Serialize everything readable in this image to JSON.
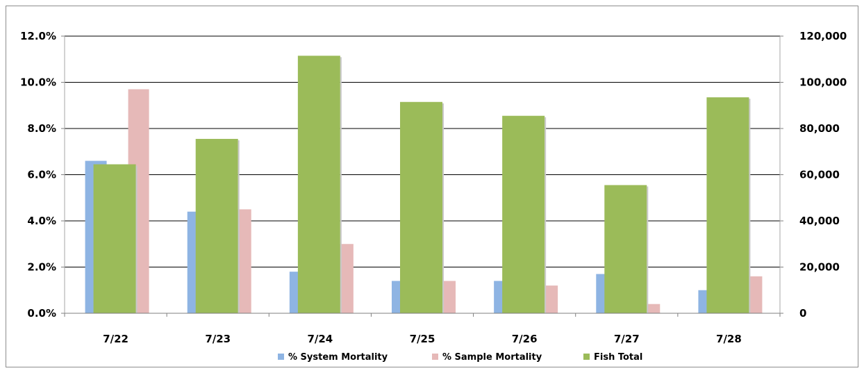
{
  "chart_data": {
    "type": "bar",
    "categories": [
      "7/22",
      "7/23",
      "7/24",
      "7/25",
      "7/26",
      "7/27",
      "7/28"
    ],
    "series": [
      {
        "name": "% System Mortality",
        "axis": "left",
        "color": "#8eb4e3",
        "values": [
          6.6,
          4.4,
          1.8,
          1.4,
          1.4,
          1.7,
          1.0
        ]
      },
      {
        "name": "% Sample Mortality",
        "axis": "left",
        "color": "#e6b9b8",
        "values": [
          9.7,
          4.5,
          3.0,
          1.4,
          1.2,
          0.4,
          1.6
        ]
      },
      {
        "name": "Fish Total",
        "axis": "right",
        "color": "#9bbb59",
        "values": [
          64500,
          75500,
          111500,
          91500,
          85500,
          55500,
          93500
        ]
      }
    ],
    "y_left": {
      "ylim": [
        0,
        12
      ],
      "ticks": [
        "0.0%",
        "2.0%",
        "4.0%",
        "6.0%",
        "8.0%",
        "10.0%",
        "12.0%"
      ]
    },
    "y_right": {
      "ylim": [
        0,
        120000
      ],
      "ticks": [
        "0",
        "20,000",
        "40,000",
        "60,000",
        "80,000",
        "100,000",
        "120,000"
      ]
    },
    "grid": true,
    "legend_position": "bottom"
  }
}
